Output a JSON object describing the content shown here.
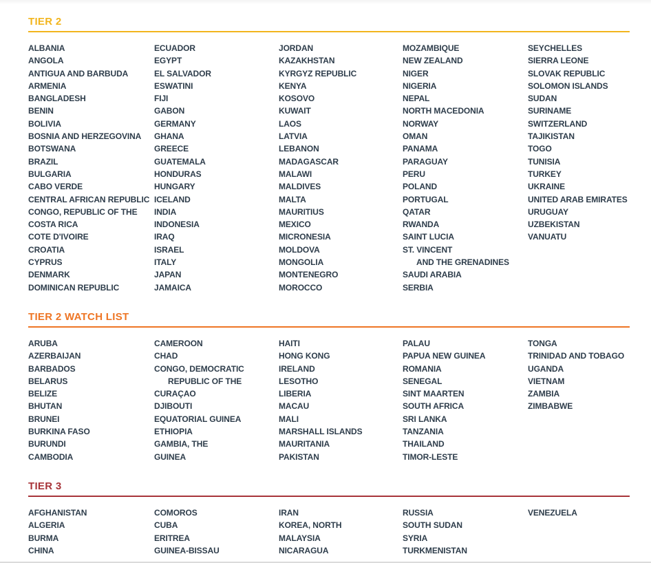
{
  "page": {
    "background": "#ffffff",
    "country_text_color": "#2e3d4b",
    "bottom_edge_color": "#dbdbdb"
  },
  "sections": [
    {
      "id": "tier-2",
      "title": "TIER 2",
      "color": "#F2B51D",
      "columns": [
        [
          "ALBANIA",
          "ANGOLA",
          "ANTIGUA AND BARBUDA",
          "ARMENIA",
          "BANGLADESH",
          "BENIN",
          "BOLIVIA",
          "BOSNIA AND HERZEGOVINA",
          "BOTSWANA",
          "BRAZIL",
          "BULGARIA",
          "CABO VERDE",
          "CENTRAL AFRICAN REPUBLIC",
          "CONGO, REPUBLIC OF THE",
          "COSTA RICA",
          "COTE D'IVOIRE",
          "CROATIA",
          "CYPRUS",
          "DENMARK",
          "DOMINICAN REPUBLIC"
        ],
        [
          "ECUADOR",
          "EGYPT",
          "EL SALVADOR",
          "ESWATINI",
          "FIJI",
          "GABON",
          "GERMANY",
          "GHANA",
          "GREECE",
          "GUATEMALA",
          "HONDURAS",
          "HUNGARY",
          "ICELAND",
          "INDIA",
          "INDONESIA",
          "IRAQ",
          "ISRAEL",
          "ITALY",
          "JAPAN",
          "JAMAICA"
        ],
        [
          "JORDAN",
          "KAZAKHSTAN",
          "KYRGYZ REPUBLIC",
          "KENYA",
          "KOSOVO",
          "KUWAIT",
          "LAOS",
          "LATVIA",
          "LEBANON",
          "MADAGASCAR",
          "MALAWI",
          "MALDIVES",
          "MALTA",
          "MAURITIUS",
          "MEXICO",
          "MICRONESIA",
          "MOLDOVA",
          "MONGOLIA",
          "MONTENEGRO",
          "MOROCCO"
        ],
        [
          "MOZAMBIQUE",
          "NEW ZEALAND",
          "NIGER",
          "NIGERIA",
          "NEPAL",
          "NORTH MACEDONIA",
          "NORWAY",
          "OMAN",
          "PANAMA",
          "PARAGUAY",
          "PERU",
          "POLAND",
          "PORTUGAL",
          "QATAR",
          "RWANDA",
          "SAINT LUCIA",
          "ST. VINCENT",
          {
            "text": "AND THE GRENADINES",
            "continuation": true
          },
          "SAUDI ARABIA",
          "SERBIA"
        ],
        [
          "SEYCHELLES",
          "SIERRA LEONE",
          "SLOVAK REPUBLIC",
          "SOLOMON ISLANDS",
          "SUDAN",
          "SURINAME",
          "SWITZERLAND",
          "TAJIKISTAN",
          "TOGO",
          "TUNISIA",
          "TURKEY",
          "UKRAINE",
          "UNITED ARAB EMIRATES",
          "URUGUAY",
          "UZBEKISTAN",
          "VANUATU"
        ]
      ]
    },
    {
      "id": "tier-2-watch-list",
      "title": "TIER 2 WATCH LIST",
      "color": "#EE7524",
      "columns": [
        [
          "ARUBA",
          "AZERBAIJAN",
          "BARBADOS",
          "BELARUS",
          "BELIZE",
          "BHUTAN",
          "BRUNEI",
          "BURKINA FASO",
          "BURUNDI",
          "CAMBODIA"
        ],
        [
          "CAMEROON",
          "CHAD",
          "CONGO, DEMOCRATIC",
          {
            "text": "REPUBLIC OF THE",
            "continuation": true
          },
          "CURAÇAO",
          "DJIBOUTI",
          "EQUATORIAL GUINEA",
          "ETHIOPIA",
          "GAMBIA, THE",
          "GUINEA"
        ],
        [
          "HAITI",
          "HONG KONG",
          "IRELAND",
          "LESOTHO",
          "LIBERIA",
          "MACAU",
          "MALI",
          "MARSHALL ISLANDS",
          "MAURITANIA",
          "PAKISTAN"
        ],
        [
          "PALAU",
          "PAPUA NEW GUINEA",
          "ROMANIA",
          "SENEGAL",
          "SINT MAARTEN",
          "SOUTH AFRICA",
          "SRI LANKA",
          "TANZANIA",
          "THAILAND",
          "TIMOR-LESTE"
        ],
        [
          "TONGA",
          "TRINIDAD AND TOBAGO",
          "UGANDA",
          "VIETNAM",
          "ZAMBIA",
          "ZIMBABWE"
        ]
      ]
    },
    {
      "id": "tier-3",
      "title": "TIER 3",
      "color": "#A73439",
      "columns": [
        [
          "AFGHANISTAN",
          "ALGERIA",
          "BURMA",
          "CHINA"
        ],
        [
          "COMOROS",
          "CUBA",
          "ERITREA",
          "GUINEA-BISSAU"
        ],
        [
          "IRAN",
          "KOREA, NORTH",
          "MALAYSIA",
          "NICARAGUA"
        ],
        [
          "RUSSIA",
          "SOUTH SUDAN",
          "SYRIA",
          "TURKMENISTAN"
        ],
        [
          "VENEZUELA"
        ]
      ]
    }
  ]
}
